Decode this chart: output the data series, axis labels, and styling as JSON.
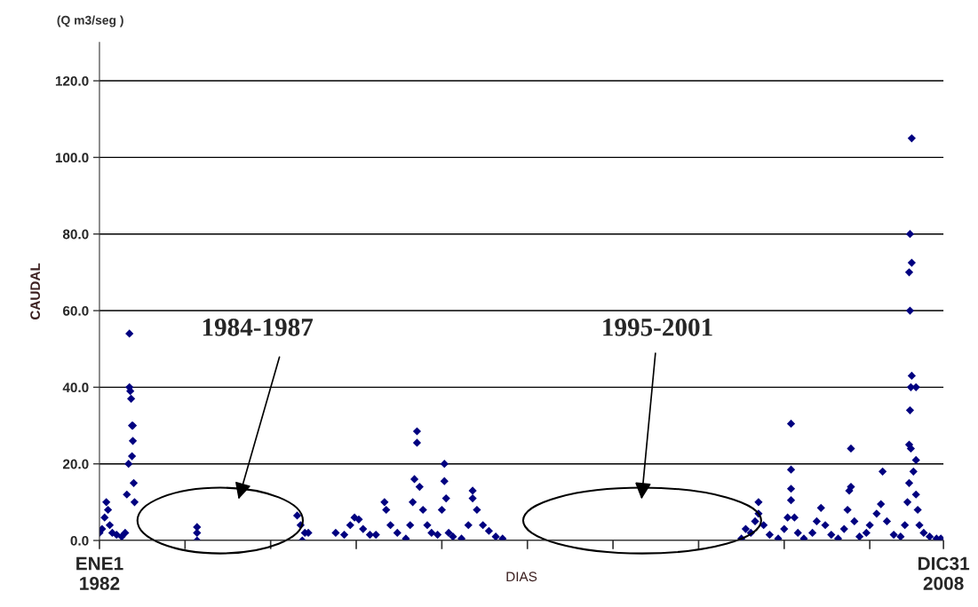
{
  "chart_data": {
    "type": "scatter",
    "ylabel": "CAUDAL",
    "xlabel": "DIAS",
    "annotations": [
      "(Q m3/seg )",
      "1984-1987",
      "1995-2001"
    ],
    "x": [
      "1982-01-01",
      "1982-01-31",
      "1982-03-02",
      "1982-03-22",
      "1982-04-11",
      "1982-05-01",
      "1982-05-31",
      "1982-07-20",
      "1982-09-18",
      "1982-10-28",
      "1982-11-17",
      "1982-12-07",
      "1982-12-17",
      "1982-12-17",
      "1982-12-27",
      "1983-01-06",
      "1983-01-16",
      "1983-01-26",
      "1983-01-26",
      "1983-01-16",
      "1983-02-05",
      "1983-02-15",
      "1985-02-14",
      "1985-02-14",
      "1985-02-14",
      "1988-04-29",
      "1988-06-08",
      "1988-07-28",
      "1988-06-28",
      "1988-09-06",
      "1989-07-23",
      "1989-10-31",
      "1990-01-09",
      "1990-02-28",
      "1990-04-19",
      "1990-06-08",
      "1990-08-27",
      "1990-11-05",
      "1991-02-13",
      "1991-03-05",
      "1991-04-24",
      "1991-07-13",
      "1991-10-21",
      "1991-12-10",
      "1992-01-09",
      "1992-01-29",
      "1992-02-28",
      "1992-02-28",
      "1992-03-29",
      "1992-05-08",
      "1992-06-27",
      "1992-08-16",
      "1992-10-25",
      "1992-12-14",
      "1993-01-13",
      "1993-01-13",
      "1993-02-02",
      "1993-03-04",
      "1993-04-23",
      "1993-08-01",
      "1993-10-20",
      "1993-12-09",
      "1993-12-09",
      "1994-01-28",
      "1994-04-08",
      "1994-06-17",
      "1994-09-05",
      "1994-11-24",
      "2002-07-15",
      "2002-09-03",
      "2002-11-02",
      "2002-12-22",
      "2003-01-31",
      "2003-01-31",
      "2003-04-01",
      "2003-06-10",
      "2003-09-18",
      "2003-11-27",
      "2004-01-06",
      "2004-02-15",
      "2004-02-15",
      "2004-02-15",
      "2004-02-15",
      "2004-03-26",
      "2004-05-05",
      "2004-07-14",
      "2004-10-22",
      "2004-12-11",
      "2005-01-30",
      "2005-03-21",
      "2005-05-30",
      "2005-08-18",
      "2005-10-27",
      "2005-12-06",
      "2005-12-26",
      "2006-01-15",
      "2006-01-15",
      "2006-02-24",
      "2006-04-25",
      "2006-07-14",
      "2006-08-23",
      "2006-11-11",
      "2006-12-31",
      "2007-01-20",
      "2007-03-11",
      "2007-05-30",
      "2007-08-18",
      "2007-10-07",
      "2007-11-06",
      "2007-11-26",
      "2007-11-26",
      "2007-12-06",
      "2007-12-06",
      "2007-11-26",
      "2007-12-26",
      "2007-12-06",
      "2007-12-26",
      "2007-12-26",
      "2007-12-16",
      "2008-02-14",
      "2007-12-16",
      "2008-02-14",
      "2008-01-15",
      "2008-02-14",
      "2008-03-05",
      "2008-03-25",
      "2008-05-14",
      "2008-07-23",
      "2008-10-11",
      "2008-11-30"
    ],
    "values": [
      2,
      3,
      6,
      10,
      8,
      4,
      2,
      1.5,
      1,
      2,
      12,
      20,
      54,
      40,
      39,
      37,
      30,
      30,
      26,
      22,
      15,
      10,
      3.5,
      2,
      0,
      6.5,
      4,
      2,
      0,
      2,
      2,
      1.5,
      4,
      6,
      5.5,
      3,
      1.5,
      1.5,
      10,
      8,
      4,
      2,
      0.5,
      4,
      10,
      16,
      28.5,
      25.5,
      14,
      8,
      4,
      2,
      1.5,
      8,
      20,
      15.5,
      11,
      2,
      1,
      0.5,
      4,
      13,
      11,
      8,
      4,
      2.5,
      1,
      0.5,
      0.5,
      3,
      2,
      5,
      10,
      7,
      4,
      1.5,
      0.5,
      3,
      6,
      30.5,
      18.5,
      13.5,
      10.5,
      6,
      2,
      0.5,
      2,
      5,
      8.5,
      4,
      1.5,
      0.5,
      3,
      8,
      13,
      24,
      14,
      5,
      1,
      2,
      4,
      7,
      9.5,
      18,
      5,
      1.5,
      1,
      4,
      10,
      15,
      25,
      34,
      60,
      70,
      72.5,
      80,
      105,
      43,
      40,
      40,
      24,
      21,
      18,
      12,
      8,
      4,
      2,
      1,
      0.5,
      0.5
    ],
    "color": "#000080",
    "marker": "diamond",
    "xlim": [
      "1982-01-01",
      "2008-12-31"
    ],
    "xticks": [
      {
        "value": "1982-01-01",
        "label": "ENE1\n1982"
      },
      {
        "value": "1984-09-27",
        "label": null
      },
      {
        "value": "1987-06-24",
        "label": null
      },
      {
        "value": "1990-03-20",
        "label": null
      },
      {
        "value": "1992-12-14",
        "label": null
      },
      {
        "value": "1995-09-10",
        "label": null
      },
      {
        "value": "1998-06-06",
        "label": null
      },
      {
        "value": "2001-03-02",
        "label": null
      },
      {
        "value": "2003-11-27",
        "label": null
      },
      {
        "value": "2006-08-23",
        "label": null
      },
      {
        "value": "2008-12-31",
        "label": "DIC31\n2008"
      }
    ],
    "ylim": [
      0,
      130
    ],
    "yticks": [
      {
        "value": 0,
        "label": "0.0"
      },
      {
        "value": 20,
        "label": "20.0"
      },
      {
        "value": 40,
        "label": "40.0"
      },
      {
        "value": 60,
        "label": "60.0"
      },
      {
        "value": 80,
        "label": "80.0"
      },
      {
        "value": 100,
        "label": "100.0"
      },
      {
        "value": 120,
        "label": "120.0"
      }
    ],
    "grid": "y"
  }
}
